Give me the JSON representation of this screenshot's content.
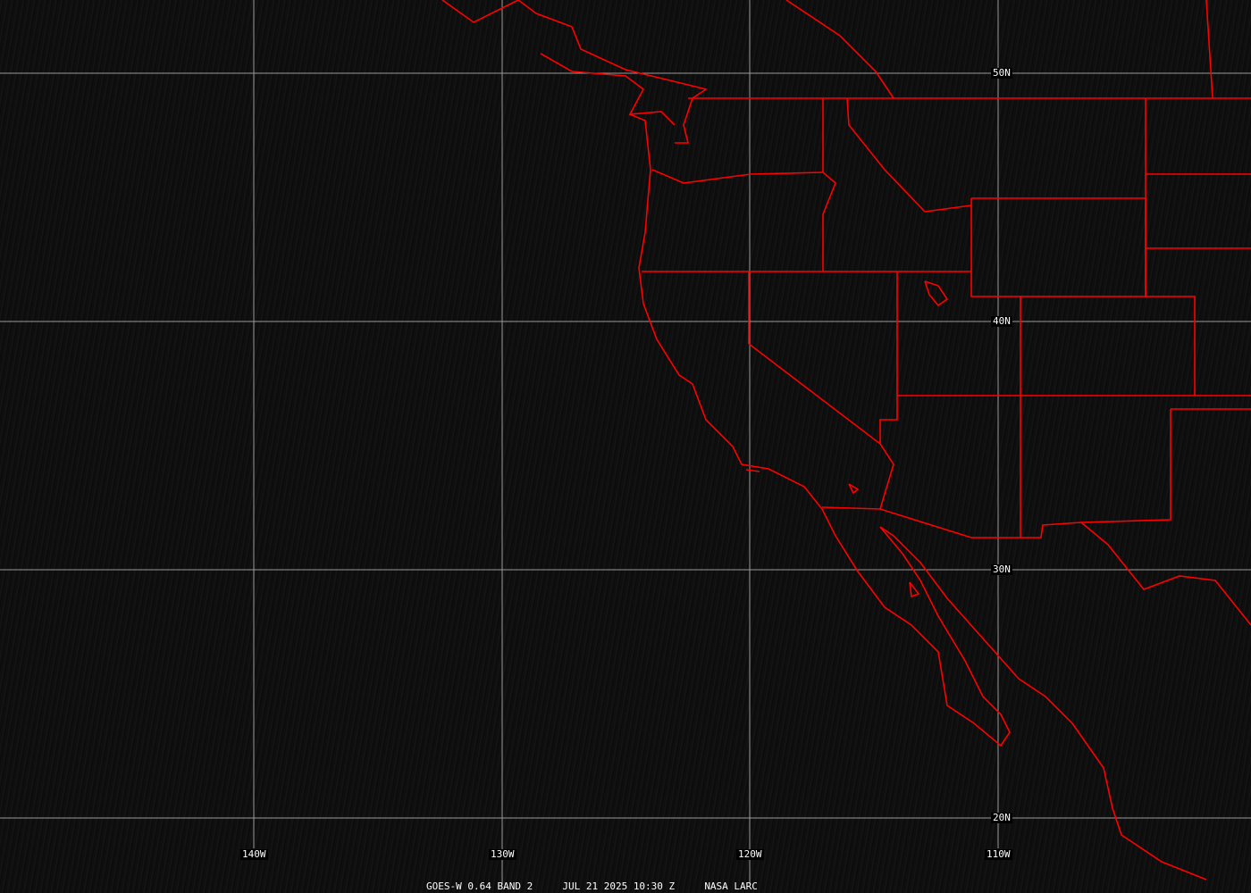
{
  "caption": {
    "satellite": "GOES-W 0.64 BAND 2",
    "datetime": "JUL 21 2025 10:30 Z",
    "source": "NASA LARC"
  },
  "grid": {
    "lat_labels": [
      "50N",
      "40N",
      "30N",
      "20N"
    ],
    "lon_labels": [
      "140W",
      "130W",
      "120W",
      "110W"
    ]
  },
  "colors": {
    "borders": "#ff0000",
    "grid": "#9a9a9a",
    "background": "#0d0d0d"
  }
}
